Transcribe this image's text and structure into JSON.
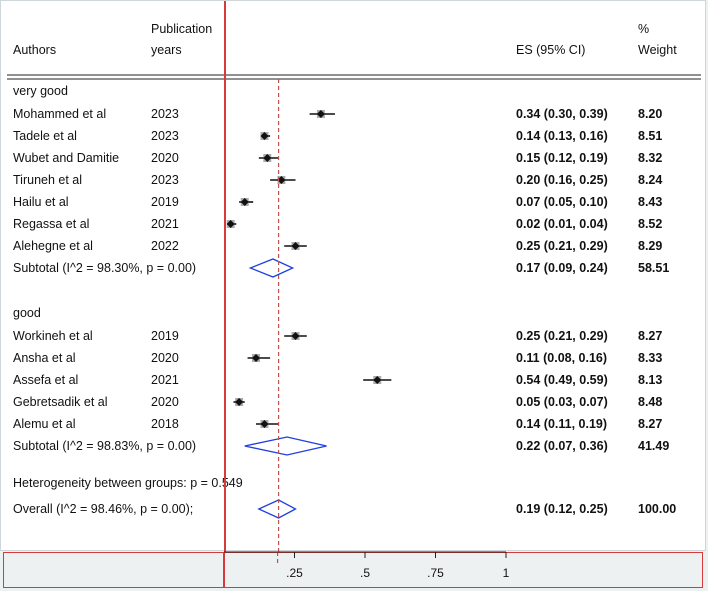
{
  "header": {
    "authors": "Authors",
    "pub_line1": "Publication",
    "pub_line2": "years",
    "es": "ES (95% CI)",
    "weight_line1": "%",
    "weight_line2": "Weight"
  },
  "heterogeneity_text": "Heterogeneity between groups: p = 0.549",
  "chart_data": {
    "type": "forest",
    "x_ticks": [
      {
        "value": 0.25,
        "label": ".25"
      },
      {
        "value": 0.5,
        "label": ".5"
      },
      {
        "value": 0.75,
        "label": ".75"
      },
      {
        "value": 1,
        "label": "1"
      }
    ],
    "overall_reference_line": 0.19,
    "groups": [
      {
        "label": "very good",
        "studies": [
          {
            "author": "Mohammed et al",
            "year": "2023",
            "es": 0.34,
            "lo": 0.3,
            "hi": 0.39,
            "es_text": "0.34 (0.30, 0.39)",
            "weight": "8.20"
          },
          {
            "author": "Tadele et al",
            "year": "2023",
            "es": 0.14,
            "lo": 0.13,
            "hi": 0.16,
            "es_text": "0.14 (0.13, 0.16)",
            "weight": "8.51"
          },
          {
            "author": "Wubet and Damitie",
            "year": "2020",
            "es": 0.15,
            "lo": 0.12,
            "hi": 0.19,
            "es_text": "0.15 (0.12, 0.19)",
            "weight": "8.32"
          },
          {
            "author": "Tiruneh et al",
            "year": "2023",
            "es": 0.2,
            "lo": 0.16,
            "hi": 0.25,
            "es_text": "0.20 (0.16, 0.25)",
            "weight": "8.24"
          },
          {
            "author": "Hailu et al",
            "year": "2019",
            "es": 0.07,
            "lo": 0.05,
            "hi": 0.1,
            "es_text": "0.07 (0.05, 0.10)",
            "weight": "8.43"
          },
          {
            "author": "Regassa et al",
            "year": "2021",
            "es": 0.02,
            "lo": 0.01,
            "hi": 0.04,
            "es_text": "0.02 (0.01, 0.04)",
            "weight": "8.52"
          },
          {
            "author": "Alehegne et al",
            "year": "2022",
            "es": 0.25,
            "lo": 0.21,
            "hi": 0.29,
            "es_text": "0.25 (0.21, 0.29)",
            "weight": "8.29"
          }
        ],
        "subtotal": {
          "label": "Subtotal  (I^2 = 98.30%, p = 0.00)",
          "es": 0.17,
          "lo": 0.09,
          "hi": 0.24,
          "es_text": "0.17 (0.09, 0.24)",
          "weight": "58.51"
        }
      },
      {
        "label": "good",
        "studies": [
          {
            "author": "Workineh et al",
            "year": "2019",
            "es": 0.25,
            "lo": 0.21,
            "hi": 0.29,
            "es_text": "0.25 (0.21, 0.29)",
            "weight": "8.27"
          },
          {
            "author": "Ansha et al",
            "year": "2020",
            "es": 0.11,
            "lo": 0.08,
            "hi": 0.16,
            "es_text": "0.11 (0.08, 0.16)",
            "weight": "8.33"
          },
          {
            "author": "Assefa et al",
            "year": "2021",
            "es": 0.54,
            "lo": 0.49,
            "hi": 0.59,
            "es_text": "0.54 (0.49, 0.59)",
            "weight": "8.13"
          },
          {
            "author": "Gebretsadik et al",
            "year": "2020",
            "es": 0.05,
            "lo": 0.03,
            "hi": 0.07,
            "es_text": "0.05 (0.03, 0.07)",
            "weight": "8.48"
          },
          {
            "author": "Alemu et al",
            "year": "2018",
            "es": 0.14,
            "lo": 0.11,
            "hi": 0.19,
            "es_text": "0.14 (0.11, 0.19)",
            "weight": "8.27"
          }
        ],
        "subtotal": {
          "label": "Subtotal  (I^2 = 98.83%, p = 0.00)",
          "es": 0.22,
          "lo": 0.07,
          "hi": 0.36,
          "es_text": "0.22 (0.07, 0.36)",
          "weight": "41.49"
        }
      }
    ],
    "overall": {
      "label": "Overall  (I^2 = 98.46%, p = 0.00);",
      "es": 0.19,
      "lo": 0.12,
      "hi": 0.25,
      "es_text": "0.19 (0.12, 0.25)",
      "weight": "100.00"
    },
    "colors": {
      "zero_line": "#d63a3a",
      "diamond": "#1f3fe0",
      "marker": "#111111",
      "reference_line": "#c0504d"
    }
  }
}
